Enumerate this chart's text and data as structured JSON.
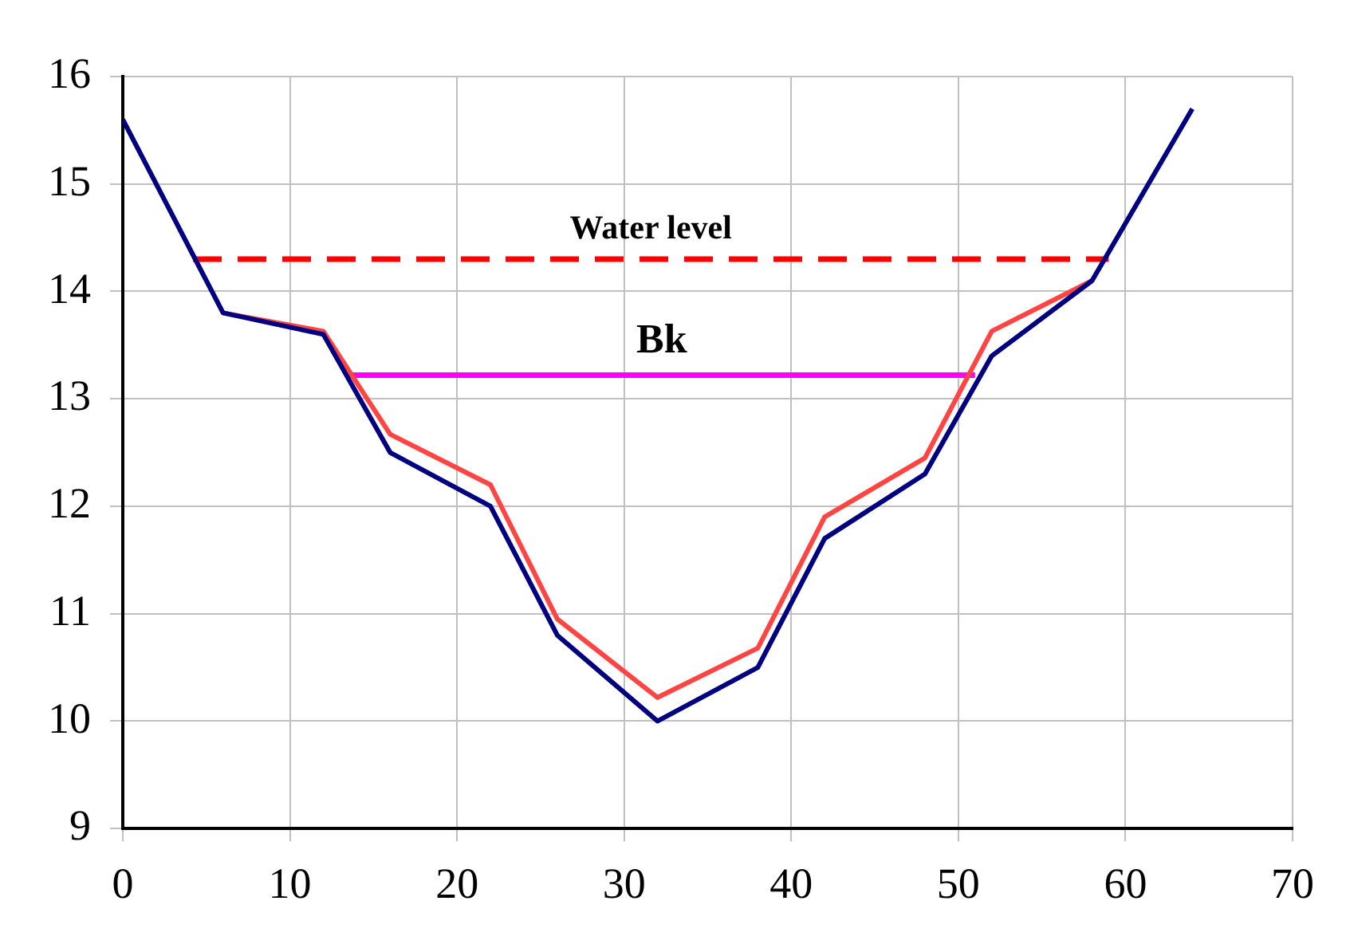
{
  "chart_data": {
    "type": "line",
    "xlim": [
      0,
      70
    ],
    "xticks": [
      0,
      10,
      20,
      30,
      40,
      50,
      60,
      70
    ],
    "ylim": [
      9,
      16
    ],
    "yticks": [
      9,
      10,
      11,
      12,
      13,
      14,
      15,
      16
    ],
    "grid": true,
    "legend": false,
    "marker": "none",
    "series": [
      {
        "color": "#000080",
        "x": [
          0,
          6,
          12,
          16,
          22,
          26,
          32,
          38,
          42,
          48,
          52,
          58,
          64
        ],
        "values": [
          15.6,
          13.8,
          13.6,
          12.5,
          12.0,
          10.8,
          10.0,
          10.5,
          11.7,
          12.3,
          13.4,
          14.1,
          15.7
        ]
      },
      {
        "color": "#ff4444",
        "x": [
          6,
          12,
          16,
          22,
          26,
          32,
          38,
          42,
          48,
          52,
          58
        ],
        "values": [
          13.8,
          13.63,
          12.67,
          12.2,
          10.95,
          10.22,
          10.68,
          11.9,
          12.45,
          13.63,
          14.1
        ]
      },
      {
        "name": "Water level",
        "color": "#ff0000",
        "line_style": "dashed",
        "x": [
          4.2,
          59
        ],
        "values": [
          14.3,
          14.3
        ]
      },
      {
        "name": "Bk",
        "color": "#ff00ff",
        "line_style": "solid",
        "x": [
          13.5,
          51
        ],
        "values": [
          13.22,
          13.22
        ]
      }
    ]
  }
}
